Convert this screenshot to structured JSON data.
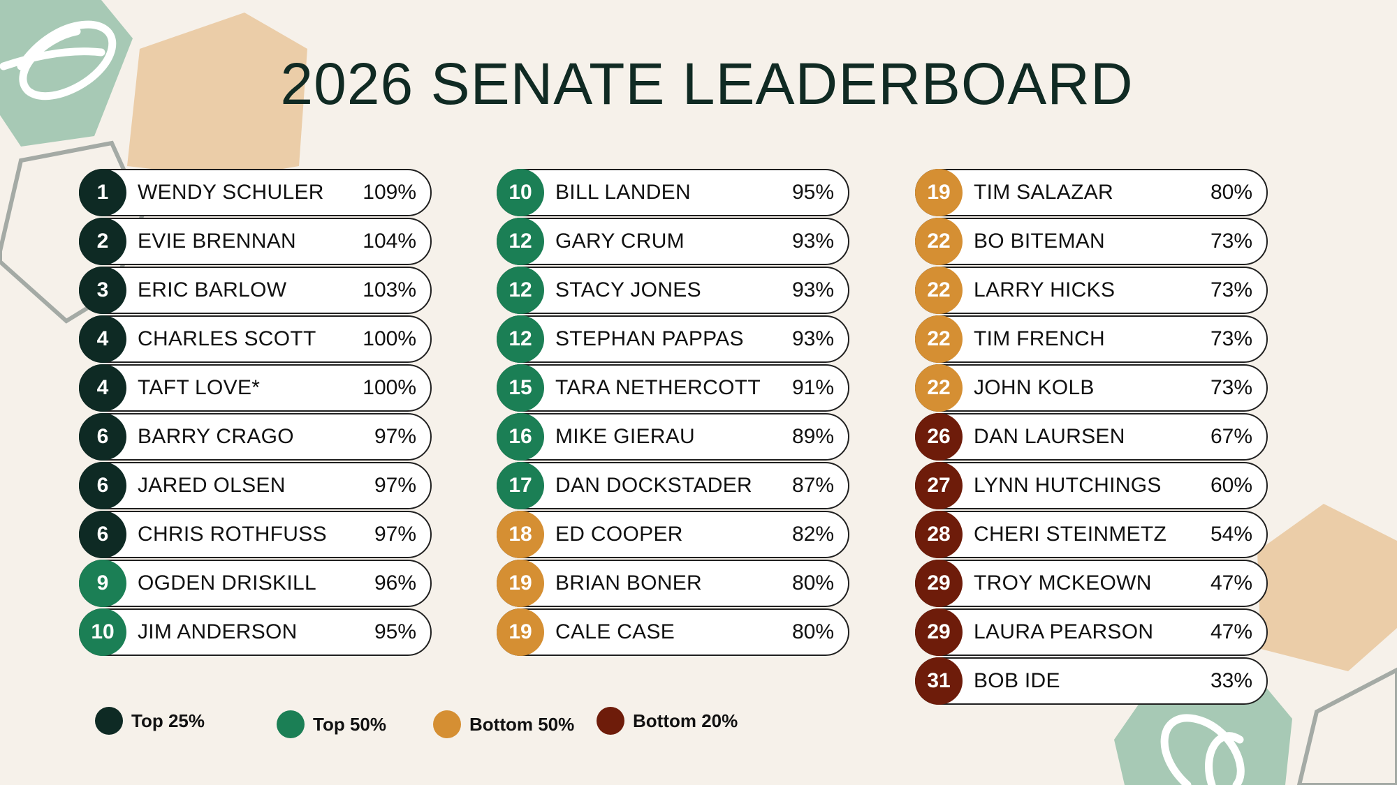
{
  "title": "2026 SENATE LEADERBOARD",
  "colors": {
    "background": "#f6f1ea",
    "top25": "#0e2a24",
    "top50": "#1b7f55",
    "bottom50": "#d58f33",
    "bottom20": "#6e1c0a",
    "hex_green": "#a7c9b5",
    "hex_tan": "#ebcda8",
    "hex_outline": "#a4aaa5"
  },
  "columns": [
    [
      {
        "rank": "1",
        "name": "WENDY SCHULER",
        "pct": "109%",
        "tier": "top25"
      },
      {
        "rank": "2",
        "name": "EVIE BRENNAN",
        "pct": "104%",
        "tier": "top25"
      },
      {
        "rank": "3",
        "name": "ERIC BARLOW",
        "pct": "103%",
        "tier": "top25"
      },
      {
        "rank": "4",
        "name": "CHARLES SCOTT",
        "pct": "100%",
        "tier": "top25"
      },
      {
        "rank": "4",
        "name": "TAFT LOVE*",
        "pct": "100%",
        "tier": "top25"
      },
      {
        "rank": "6",
        "name": "BARRY CRAGO",
        "pct": "97%",
        "tier": "top25"
      },
      {
        "rank": "6",
        "name": "JARED OLSEN",
        "pct": "97%",
        "tier": "top25"
      },
      {
        "rank": "6",
        "name": "CHRIS ROTHFUSS",
        "pct": "97%",
        "tier": "top25"
      },
      {
        "rank": "9",
        "name": "OGDEN DRISKILL",
        "pct": "96%",
        "tier": "top50"
      },
      {
        "rank": "10",
        "name": "JIM ANDERSON",
        "pct": "95%",
        "tier": "top50"
      }
    ],
    [
      {
        "rank": "10",
        "name": "BILL LANDEN",
        "pct": "95%",
        "tier": "top50"
      },
      {
        "rank": "12",
        "name": "GARY CRUM",
        "pct": "93%",
        "tier": "top50"
      },
      {
        "rank": "12",
        "name": "STACY JONES",
        "pct": "93%",
        "tier": "top50"
      },
      {
        "rank": "12",
        "name": "STEPHAN PAPPAS",
        "pct": "93%",
        "tier": "top50"
      },
      {
        "rank": "15",
        "name": "TARA NETHERCOTT",
        "pct": "91%",
        "tier": "top50"
      },
      {
        "rank": "16",
        "name": "MIKE GIERAU",
        "pct": "89%",
        "tier": "top50"
      },
      {
        "rank": "17",
        "name": "DAN DOCKSTADER",
        "pct": "87%",
        "tier": "top50"
      },
      {
        "rank": "18",
        "name": "ED COOPER",
        "pct": "82%",
        "tier": "bottom50"
      },
      {
        "rank": "19",
        "name": "BRIAN BONER",
        "pct": "80%",
        "tier": "bottom50"
      },
      {
        "rank": "19",
        "name": "CALE CASE",
        "pct": "80%",
        "tier": "bottom50"
      }
    ],
    [
      {
        "rank": "19",
        "name": "TIM SALAZAR",
        "pct": "80%",
        "tier": "bottom50"
      },
      {
        "rank": "22",
        "name": "BO BITEMAN",
        "pct": "73%",
        "tier": "bottom50"
      },
      {
        "rank": "22",
        "name": "LARRY HICKS",
        "pct": "73%",
        "tier": "bottom50"
      },
      {
        "rank": "22",
        "name": "TIM FRENCH",
        "pct": "73%",
        "tier": "bottom50"
      },
      {
        "rank": "22",
        "name": "JOHN KOLB",
        "pct": "73%",
        "tier": "bottom50"
      },
      {
        "rank": "26",
        "name": "DAN LAURSEN",
        "pct": "67%",
        "tier": "bottom20"
      },
      {
        "rank": "27",
        "name": "LYNN HUTCHINGS",
        "pct": "60%",
        "tier": "bottom20"
      },
      {
        "rank": "28",
        "name": "CHERI STEINMETZ",
        "pct": "54%",
        "tier": "bottom20"
      },
      {
        "rank": "29",
        "name": "TROY MCKEOWN",
        "pct": "47%",
        "tier": "bottom20"
      },
      {
        "rank": "29",
        "name": "LAURA PEARSON",
        "pct": "47%",
        "tier": "bottom20"
      },
      {
        "rank": "31",
        "name": "BOB IDE",
        "pct": "33%",
        "tier": "bottom20"
      }
    ]
  ],
  "legend": [
    {
      "label": "Top 25%",
      "tier": "top25"
    },
    {
      "label": "Top 50%",
      "tier": "top50"
    },
    {
      "label": "Bottom 50%",
      "tier": "bottom50"
    },
    {
      "label": "Bottom 20%",
      "tier": "bottom20"
    }
  ]
}
